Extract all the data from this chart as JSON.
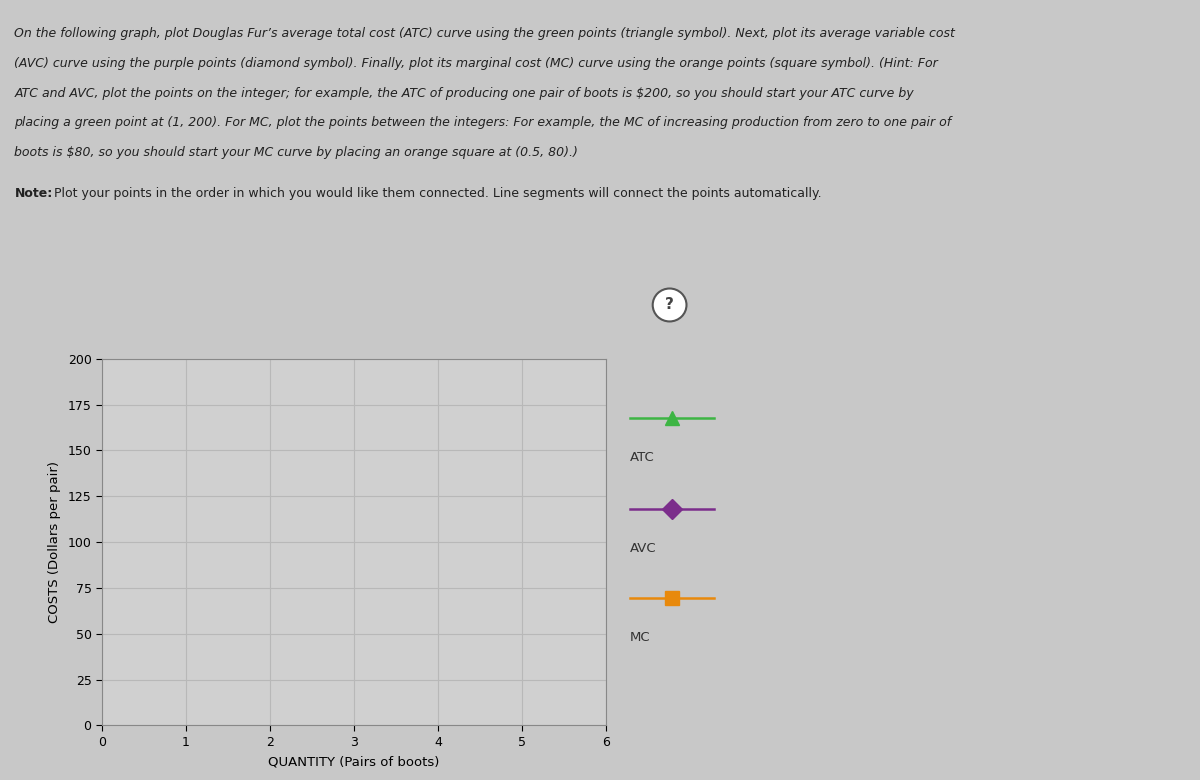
{
  "instruction_text_line1": "On the following graph, plot Douglas Fur’s average total cost (ATC) curve using the green points (triangle symbol). Next, plot its average variable cost",
  "instruction_text_line2": "(AVC) curve using the purple points (diamond symbol). Finally, plot its marginal cost (MC) curve using the orange points (square symbol). (Hint: For",
  "instruction_text_line3": "ATC and AVC, plot the points on the integer; for example, the ATC of producing one pair of boots is $200, so you should start your ATC curve by",
  "instruction_text_line4": "placing a green point at (1, 200). For MC, plot the points between the integers: For example, the MC of increasing production from zero to one pair of",
  "instruction_text_line5": "boots is $80, so you should start your MC curve by placing an orange square at (0.5, 80).)",
  "note_bold": "Note:",
  "note_rest": " Plot your points in the order in which you would like them connected. Line segments will connect the points automatically.",
  "xlabel": "QUANTITY (Pairs of boots)",
  "ylabel": "COSTS (Dollars per pair)",
  "xlim": [
    0,
    6
  ],
  "ylim": [
    0,
    200
  ],
  "xticks": [
    0,
    1,
    2,
    3,
    4,
    5,
    6
  ],
  "yticks": [
    0,
    25,
    50,
    75,
    100,
    125,
    150,
    175,
    200
  ],
  "outer_bg_color": "#c8c8c8",
  "panel_bg_color": "#e8e8e8",
  "plot_bg_color": "#d0d0d0",
  "grid_color": "#b8b8b8",
  "legend_items": [
    {
      "label": "ATC",
      "color": "#3db544",
      "marker": "^",
      "linestyle": "-"
    },
    {
      "label": "AVC",
      "color": "#7b2d8b",
      "marker": "D",
      "linestyle": "-"
    },
    {
      "label": "MC",
      "color": "#e8890c",
      "marker": "s",
      "linestyle": "-"
    }
  ],
  "text_color": "#222222",
  "tick_fontsize": 9,
  "axis_label_fontsize": 9.5,
  "instruction_fontsize": 9.0
}
